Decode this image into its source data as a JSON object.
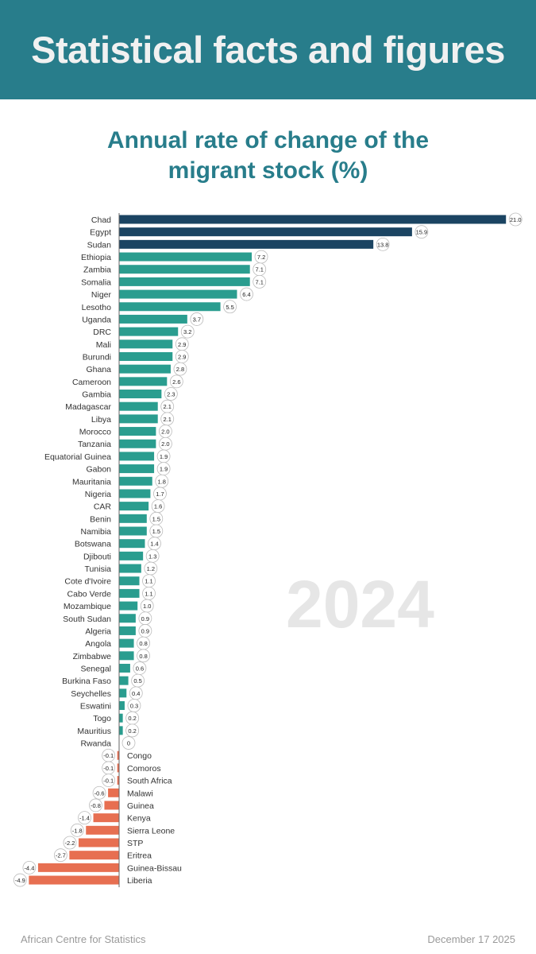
{
  "header": {
    "title": "Statistical facts and figures"
  },
  "footer": {
    "source": "African Centre for Statistics",
    "date": "December 17 2025"
  },
  "colors": {
    "header": "#287d8b",
    "top3": "#1b4462",
    "positive": "#2a9d8f",
    "negative": "#e76f51"
  },
  "chart_data": {
    "type": "bar",
    "orientation": "horizontal",
    "title": "Annual rate of change of the migrant stock (%)",
    "annotation": "2024",
    "xlabel": "",
    "ylabel": "",
    "grid": false,
    "categories": [
      "Chad",
      "Egypt",
      "Sudan",
      "Ethiopia",
      "Zambia",
      "Somalia",
      "Niger",
      "Lesotho",
      "Uganda",
      "DRC",
      "Mali",
      "Burundi",
      "Ghana",
      "Cameroon",
      "Gambia",
      "Madagascar",
      "Libya",
      "Morocco",
      "Tanzania",
      "Equatorial Guinea",
      "Gabon",
      "Mauritania",
      "Nigeria",
      "CAR",
      "Benin",
      "Namibia",
      "Botswana",
      "Djibouti",
      "Tunisia",
      "Cote d'Ivoire",
      "Cabo Verde",
      "Mozambique",
      "South Sudan",
      "Algeria",
      "Angola",
      "Zimbabwe",
      "Senegal",
      "Burkina Faso",
      "Seychelles",
      "Eswatini",
      "Togo",
      "Mauritius",
      "Rwanda",
      "Congo",
      "Comoros",
      "South Africa",
      "Malawi",
      "Guinea",
      "Kenya",
      "Sierra Leone",
      "STP",
      "Eritrea",
      "Guinea-Bissau",
      "Liberia"
    ],
    "values": [
      21.0,
      15.9,
      13.8,
      7.2,
      7.1,
      7.1,
      6.4,
      5.5,
      3.7,
      3.2,
      2.9,
      2.9,
      2.8,
      2.6,
      2.3,
      2.1,
      2.1,
      2.0,
      2.0,
      1.9,
      1.9,
      1.8,
      1.7,
      1.6,
      1.5,
      1.5,
      1.4,
      1.3,
      1.2,
      1.1,
      1.1,
      1.0,
      0.9,
      0.9,
      0.8,
      0.8,
      0.6,
      0.5,
      0.4,
      0.3,
      0.2,
      0.2,
      0,
      -0.1,
      -0.1,
      -0.1,
      -0.6,
      -0.8,
      -1.4,
      -1.8,
      -2.2,
      -2.7,
      -4.4,
      -4.9
    ],
    "labels": [
      "21.0",
      "15.9",
      "13.8",
      "7.2",
      "7.1",
      "7.1",
      "6.4",
      "5.5",
      "3.7",
      "3.2",
      "2.9",
      "2.9",
      "2.8",
      "2.6",
      "2.3",
      "2.1",
      "2.1",
      "2.0",
      "2.0",
      "1.9",
      "1.9",
      "1.8",
      "1.7",
      "1.6",
      "1.5",
      "1.5",
      "1.4",
      "1.3",
      "1.2",
      "1.1",
      "1.1",
      "1.0",
      "0.9",
      "0.9",
      "0.8",
      "0.8",
      "0.6",
      "0.5",
      "0.4",
      "0.3",
      "0.2",
      "0.2",
      "0",
      "-0.1",
      "-0.1",
      "-0.1",
      "-0.6",
      "-0.8",
      "-1.4",
      "-1.8",
      "-2.2",
      "-2.7",
      "-4.4",
      "-4.9"
    ]
  }
}
